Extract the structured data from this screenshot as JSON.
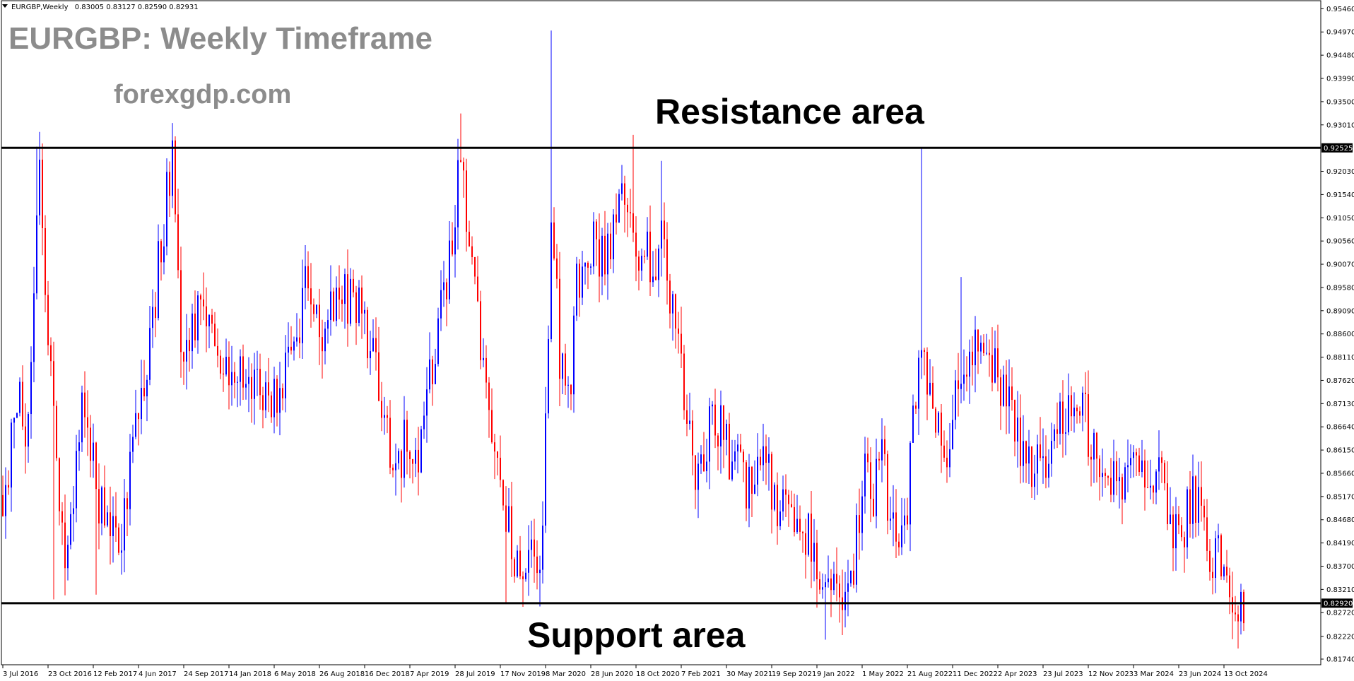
{
  "header": {
    "symbol_info": "EURGBP,Weekly",
    "ohlc_info": "0.83005 0.83127 0.82590 0.82931"
  },
  "overlay": {
    "title": "EURGBP: Weekly Timeframe",
    "website": "forexgdp.com",
    "resistance_label": "Resistance area",
    "support_label": "Support area"
  },
  "colors": {
    "bull": "#0000ff",
    "bear": "#ff0000",
    "level_line": "#000000",
    "title_text": "#8c8c8c",
    "frame": "#000000",
    "price_tag_bg": "#000000",
    "price_tag_text": "#ffffff"
  },
  "chart_data": {
    "type": "candlestick",
    "title": "EURGBP: Weekly Timeframe",
    "ylim": [
      0.8174,
      0.9554
    ],
    "y_ticks": [
      "0.95460",
      "0.94970",
      "0.94480",
      "0.93990",
      "0.93500",
      "0.93010",
      "0.92030",
      "0.91540",
      "0.91050",
      "0.90560",
      "0.90070",
      "0.89580",
      "0.89090",
      "0.88600",
      "0.88110",
      "0.87620",
      "0.87130",
      "0.86640",
      "0.86150",
      "0.85660",
      "0.85170",
      "0.84680",
      "0.84190",
      "0.83700",
      "0.83210",
      "0.82720",
      "0.82220",
      "0.81740"
    ],
    "x_ticks": [
      "3 Jul 2016",
      "23 Oct 2016",
      "12 Feb 2017",
      "4 Jun 2017",
      "24 Sep 2017",
      "14 Jan 2018",
      "6 May 2018",
      "26 Aug 2018",
      "16 Dec 2018",
      "7 Apr 2019",
      "28 Jul 2019",
      "17 Nov 2019",
      "8 Mar 2020",
      "28 Jun 2020",
      "18 Oct 2020",
      "7 Feb 2021",
      "30 May 2021",
      "19 Sep 2021",
      "9 Jan 2022",
      "1 May 2022",
      "21 Aug 2022",
      "11 Dec 2022",
      "2 Apr 2023",
      "23 Jul 2023",
      "12 Nov 2023",
      "3 Mar 2024",
      "23 Jun 2024",
      "13 Oct 2024"
    ],
    "resistance_level": "0.92525",
    "support_level": "0.82920",
    "anchors": [
      {
        "date": "2016-07-03",
        "price": 0.852
      },
      {
        "date": "2016-08-14",
        "price": 0.872
      },
      {
        "date": "2016-08-28",
        "price": 0.86
      },
      {
        "date": "2016-10-02",
        "price": 0.925
      },
      {
        "date": "2016-10-16",
        "price": 0.89
      },
      {
        "date": "2016-12-04",
        "price": 0.84
      },
      {
        "date": "2017-01-15",
        "price": 0.87
      },
      {
        "date": "2017-02-26",
        "price": 0.852
      },
      {
        "date": "2017-04-16",
        "price": 0.84
      },
      {
        "date": "2017-05-28",
        "price": 0.87
      },
      {
        "date": "2017-06-25",
        "price": 0.88
      },
      {
        "date": "2017-07-30",
        "price": 0.905
      },
      {
        "date": "2017-08-27",
        "price": 0.925
      },
      {
        "date": "2017-09-17",
        "price": 0.885
      },
      {
        "date": "2017-11-05",
        "price": 0.89
      },
      {
        "date": "2017-12-17",
        "price": 0.882
      },
      {
        "date": "2018-01-28",
        "price": 0.88
      },
      {
        "date": "2018-03-18",
        "price": 0.875
      },
      {
        "date": "2018-04-29",
        "price": 0.872
      },
      {
        "date": "2018-06-10",
        "price": 0.88
      },
      {
        "date": "2018-07-22",
        "price": 0.895
      },
      {
        "date": "2018-09-02",
        "price": 0.888
      },
      {
        "date": "2018-10-21",
        "price": 0.892
      },
      {
        "date": "2018-11-18",
        "price": 0.896
      },
      {
        "date": "2019-01-06",
        "price": 0.88
      },
      {
        "date": "2019-02-24",
        "price": 0.858
      },
      {
        "date": "2019-03-24",
        "price": 0.862
      },
      {
        "date": "2019-04-14",
        "price": 0.855
      },
      {
        "date": "2019-06-09",
        "price": 0.885
      },
      {
        "date": "2019-07-14",
        "price": 0.902
      },
      {
        "date": "2019-08-11",
        "price": 0.922
      },
      {
        "date": "2019-09-01",
        "price": 0.905
      },
      {
        "date": "2019-10-13",
        "price": 0.875
      },
      {
        "date": "2019-11-10",
        "price": 0.86
      },
      {
        "date": "2019-12-08",
        "price": 0.845
      },
      {
        "date": "2019-12-29",
        "price": 0.835
      },
      {
        "date": "2020-02-09",
        "price": 0.84
      },
      {
        "date": "2020-02-23",
        "price": 0.832
      },
      {
        "date": "2020-03-08",
        "price": 0.865
      },
      {
        "date": "2020-03-22",
        "price": 0.915
      },
      {
        "date": "2020-04-12",
        "price": 0.88
      },
      {
        "date": "2020-05-03",
        "price": 0.87
      },
      {
        "date": "2020-05-24",
        "price": 0.895
      },
      {
        "date": "2020-06-28",
        "price": 0.905
      },
      {
        "date": "2020-08-02",
        "price": 0.9
      },
      {
        "date": "2020-09-13",
        "price": 0.92
      },
      {
        "date": "2020-10-18",
        "price": 0.905
      },
      {
        "date": "2020-11-29",
        "price": 0.9
      },
      {
        "date": "2020-12-20",
        "price": 0.91
      },
      {
        "date": "2021-01-17",
        "price": 0.89
      },
      {
        "date": "2021-02-14",
        "price": 0.875
      },
      {
        "date": "2021-03-07",
        "price": 0.86
      },
      {
        "date": "2021-04-04",
        "price": 0.855
      },
      {
        "date": "2021-04-25",
        "price": 0.87
      },
      {
        "date": "2021-06-06",
        "price": 0.86
      },
      {
        "date": "2021-07-18",
        "price": 0.855
      },
      {
        "date": "2021-08-29",
        "price": 0.858
      },
      {
        "date": "2021-10-10",
        "price": 0.85
      },
      {
        "date": "2021-11-21",
        "price": 0.848
      },
      {
        "date": "2021-12-19",
        "price": 0.843
      },
      {
        "date": "2022-01-16",
        "price": 0.835
      },
      {
        "date": "2022-02-13",
        "price": 0.836
      },
      {
        "date": "2022-03-06",
        "price": 0.832
      },
      {
        "date": "2022-04-10",
        "price": 0.838
      },
      {
        "date": "2022-05-08",
        "price": 0.855
      },
      {
        "date": "2022-05-29",
        "price": 0.852
      },
      {
        "date": "2022-06-19",
        "price": 0.86
      },
      {
        "date": "2022-07-17",
        "price": 0.845
      },
      {
        "date": "2022-08-14",
        "price": 0.845
      },
      {
        "date": "2022-09-04",
        "price": 0.865
      },
      {
        "date": "2022-09-25",
        "price": 0.885
      },
      {
        "date": "2022-10-23",
        "price": 0.872
      },
      {
        "date": "2022-11-20",
        "price": 0.86
      },
      {
        "date": "2022-12-11",
        "price": 0.87
      },
      {
        "date": "2023-01-08",
        "price": 0.88
      },
      {
        "date": "2023-02-05",
        "price": 0.887
      },
      {
        "date": "2023-03-05",
        "price": 0.881
      },
      {
        "date": "2023-04-02",
        "price": 0.878
      },
      {
        "date": "2023-04-30",
        "price": 0.872
      },
      {
        "date": "2023-05-28",
        "price": 0.862
      },
      {
        "date": "2023-07-02",
        "price": 0.858
      },
      {
        "date": "2023-07-23",
        "price": 0.858
      },
      {
        "date": "2023-08-20",
        "price": 0.865
      },
      {
        "date": "2023-10-01",
        "price": 0.868
      },
      {
        "date": "2023-10-29",
        "price": 0.872
      },
      {
        "date": "2023-11-26",
        "price": 0.86
      },
      {
        "date": "2024-01-07",
        "price": 0.858
      },
      {
        "date": "2024-02-18",
        "price": 0.855
      },
      {
        "date": "2024-03-24",
        "price": 0.857
      },
      {
        "date": "2024-04-21",
        "price": 0.858
      },
      {
        "date": "2024-05-19",
        "price": 0.852
      },
      {
        "date": "2024-06-16",
        "price": 0.845
      },
      {
        "date": "2024-07-07",
        "price": 0.844
      },
      {
        "date": "2024-07-28",
        "price": 0.855
      },
      {
        "date": "2024-08-18",
        "price": 0.846
      },
      {
        "date": "2024-09-22",
        "price": 0.838
      },
      {
        "date": "2024-10-13",
        "price": 0.838
      },
      {
        "date": "2024-11-10",
        "price": 0.83
      },
      {
        "date": "2024-12-01",
        "price": 0.829
      }
    ],
    "spikes": [
      {
        "date": "2016-09-25",
        "price": 0.9255
      },
      {
        "date": "2017-08-27",
        "price": 0.9305
      },
      {
        "date": "2019-08-11",
        "price": 0.9325
      },
      {
        "date": "2020-03-22",
        "price": 0.95
      },
      {
        "date": "2020-10-11",
        "price": 0.928
      },
      {
        "date": "2020-12-20",
        "price": 0.9225
      },
      {
        "date": "2022-09-25",
        "price": 0.9252
      },
      {
        "date": "2023-01-01",
        "price": 0.898
      },
      {
        "date": "2022-01-30",
        "price": 0.8215
      },
      {
        "date": "2019-12-01",
        "price": 0.829
      },
      {
        "date": "2017-02-19",
        "price": 0.831
      },
      {
        "date": "2016-11-06",
        "price": 0.83
      },
      {
        "date": "2020-02-23",
        "price": 0.8285
      },
      {
        "date": "2022-03-06",
        "price": 0.826
      }
    ]
  }
}
